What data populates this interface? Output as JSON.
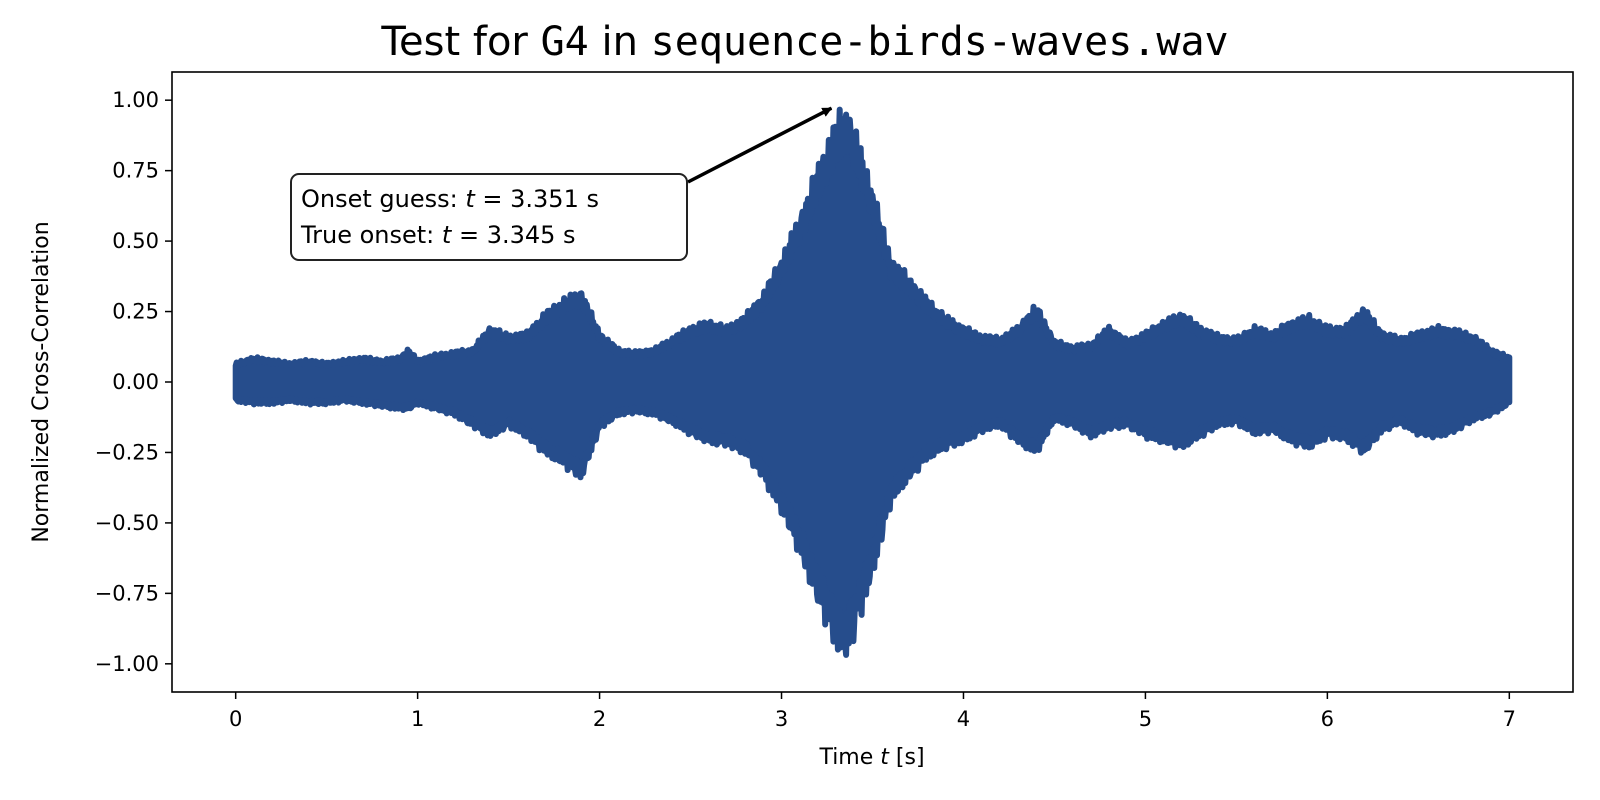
{
  "chart_data": {
    "type": "line",
    "title": {
      "prefix": "Test for ",
      "note": "G4",
      "middle": " in ",
      "file": "sequence-birds-waves.wav"
    },
    "xlabel": {
      "prefix": "Time ",
      "var": "t",
      "suffix": " [s]"
    },
    "ylabel": "Normalized Cross-Correlation",
    "xlim": [
      -0.35,
      7.35
    ],
    "ylim": [
      -1.1,
      1.1
    ],
    "xticks": [
      0,
      1,
      2,
      3,
      4,
      5,
      6,
      7
    ],
    "xtick_labels": [
      "0",
      "1",
      "2",
      "3",
      "4",
      "5",
      "6",
      "7"
    ],
    "yticks": [
      1.0,
      0.75,
      0.5,
      0.25,
      0.0,
      -0.25,
      -0.5,
      -0.75,
      -1.0
    ],
    "ytick_labels": [
      "1.00",
      "0.75",
      "0.50",
      "0.25",
      "0.00",
      "−0.25",
      "−0.50",
      "−0.75",
      "−1.00"
    ],
    "grid": false,
    "series": [
      {
        "color": "#264d8c",
        "envelope_t": [
          0.0,
          0.1,
          0.2,
          0.3,
          0.4,
          0.5,
          0.6,
          0.7,
          0.8,
          0.9,
          0.95,
          1.0,
          1.1,
          1.2,
          1.3,
          1.4,
          1.5,
          1.6,
          1.7,
          1.8,
          1.9,
          2.0,
          2.1,
          2.2,
          2.3,
          2.4,
          2.5,
          2.6,
          2.7,
          2.8,
          2.9,
          3.0,
          3.1,
          3.2,
          3.3,
          3.35,
          3.4,
          3.5,
          3.6,
          3.7,
          3.8,
          3.9,
          4.0,
          4.1,
          4.2,
          4.3,
          4.4,
          4.5,
          4.6,
          4.7,
          4.8,
          4.9,
          5.0,
          5.1,
          5.2,
          5.3,
          5.4,
          5.5,
          5.6,
          5.7,
          5.8,
          5.9,
          6.0,
          6.1,
          6.2,
          6.3,
          6.4,
          6.5,
          6.6,
          6.7,
          6.8,
          6.9,
          7.0
        ],
        "envelope_upper": [
          0.07,
          0.09,
          0.08,
          0.07,
          0.08,
          0.07,
          0.08,
          0.09,
          0.08,
          0.09,
          0.12,
          0.08,
          0.1,
          0.11,
          0.12,
          0.2,
          0.17,
          0.18,
          0.25,
          0.3,
          0.33,
          0.18,
          0.12,
          0.11,
          0.12,
          0.16,
          0.2,
          0.22,
          0.2,
          0.24,
          0.32,
          0.45,
          0.6,
          0.78,
          0.95,
          1.0,
          0.92,
          0.7,
          0.45,
          0.38,
          0.3,
          0.24,
          0.2,
          0.17,
          0.16,
          0.2,
          0.28,
          0.15,
          0.13,
          0.14,
          0.2,
          0.15,
          0.18,
          0.22,
          0.25,
          0.2,
          0.17,
          0.16,
          0.2,
          0.18,
          0.22,
          0.24,
          0.2,
          0.2,
          0.27,
          0.18,
          0.16,
          0.18,
          0.2,
          0.19,
          0.17,
          0.12,
          0.09
        ],
        "envelope_lower": [
          -0.07,
          -0.08,
          -0.08,
          -0.07,
          -0.08,
          -0.08,
          -0.07,
          -0.08,
          -0.09,
          -0.1,
          -0.1,
          -0.08,
          -0.1,
          -0.12,
          -0.16,
          -0.2,
          -0.16,
          -0.2,
          -0.26,
          -0.3,
          -0.35,
          -0.17,
          -0.12,
          -0.11,
          -0.12,
          -0.15,
          -0.19,
          -0.22,
          -0.23,
          -0.26,
          -0.35,
          -0.47,
          -0.62,
          -0.8,
          -0.96,
          -1.0,
          -0.92,
          -0.7,
          -0.44,
          -0.35,
          -0.28,
          -0.24,
          -0.22,
          -0.18,
          -0.16,
          -0.22,
          -0.26,
          -0.14,
          -0.16,
          -0.2,
          -0.17,
          -0.16,
          -0.2,
          -0.22,
          -0.24,
          -0.2,
          -0.16,
          -0.15,
          -0.19,
          -0.18,
          -0.22,
          -0.24,
          -0.2,
          -0.21,
          -0.26,
          -0.18,
          -0.15,
          -0.19,
          -0.2,
          -0.18,
          -0.14,
          -0.12,
          -0.08
        ]
      }
    ],
    "annotation": {
      "line1_prefix": "Onset guess: ",
      "line1_var": "t",
      "line1_suffix": " = 3.351 s",
      "line2_prefix": "True onset: ",
      "line2_var": "t",
      "line2_suffix": " = 3.345 s",
      "arrow_target_x": 3.351,
      "arrow_target_y": 1.0,
      "arrow_color": "#000000"
    }
  }
}
